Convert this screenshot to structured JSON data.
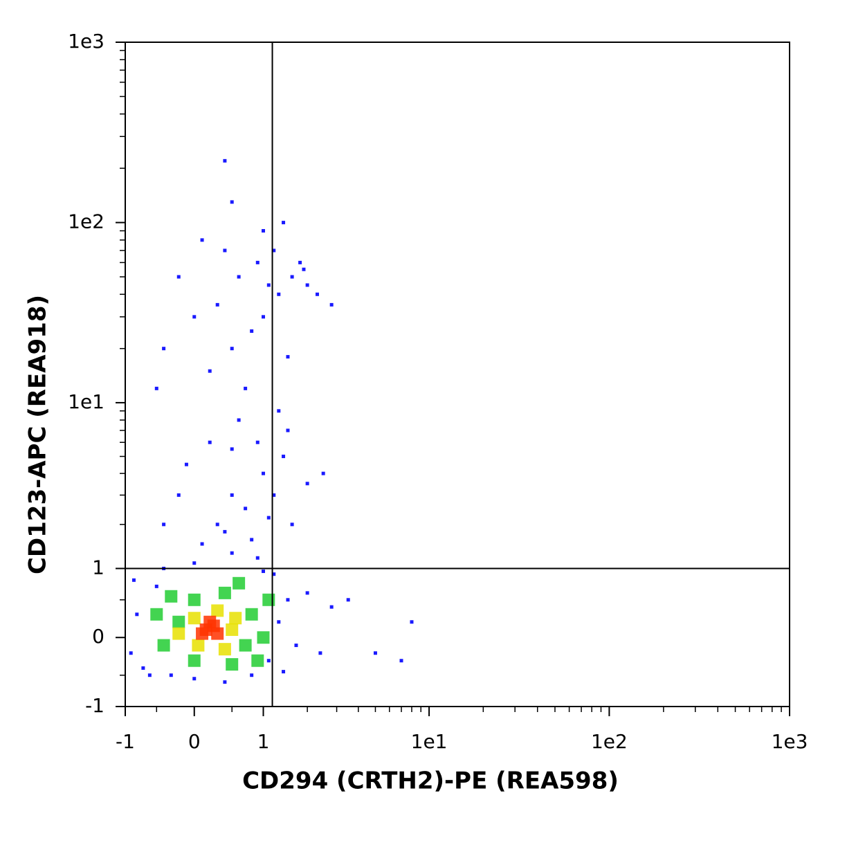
{
  "chart_data": {
    "type": "scatter",
    "xlabel": "CD294 (CRTH2)-PE (REA598)",
    "ylabel": "CD123-APC (REA918)",
    "xscale": "asinh",
    "yscale": "asinh",
    "xlim": [
      -1,
      1000
    ],
    "ylim": [
      -1,
      1000
    ],
    "xticks": [
      -1,
      0,
      1,
      {
        "value": 10,
        "label": "1e1"
      },
      {
        "value": 100,
        "label": "1e2"
      },
      {
        "value": 1000,
        "label": "1e3"
      }
    ],
    "yticks": [
      -1,
      0,
      1,
      {
        "value": 10,
        "label": "1e1"
      },
      {
        "value": 100,
        "label": "1e2"
      },
      {
        "value": 1000,
        "label": "1e3"
      }
    ],
    "xminorticks": [
      -0.5,
      0.5,
      2,
      3,
      4,
      5,
      6,
      7,
      8,
      9,
      20,
      30,
      40,
      50,
      60,
      70,
      80,
      90,
      200,
      300,
      400,
      500,
      600,
      700,
      800,
      900
    ],
    "yminorticks": [
      -0.5,
      0.5,
      2,
      3,
      4,
      5,
      6,
      7,
      8,
      9,
      20,
      30,
      40,
      50,
      60,
      70,
      80,
      90,
      200,
      300,
      400,
      500,
      600,
      700,
      800,
      900
    ],
    "gates": {
      "x": 1.17,
      "y": 1
    },
    "series": [
      {
        "color": "#1a1aff",
        "x": [
          -0.8,
          -0.9,
          -0.7,
          -0.5,
          -0.3,
          0,
          0.4,
          0.8,
          1.1,
          1.3,
          1.5,
          1.2,
          0.9,
          0.5,
          0,
          -0.4,
          1.7,
          2.0,
          2.4,
          2.8,
          3.5,
          5,
          8,
          7,
          -0.85,
          1.0,
          1.4,
          -0.6,
          0.1,
          0.3,
          0.5,
          0.7,
          1.0,
          1.2,
          1.4,
          0.2,
          0.6,
          0.9,
          1.3,
          -0.2,
          -0.4,
          1.6,
          2.0,
          0.4,
          0.8,
          1.1,
          -0.1,
          0.5,
          1.5,
          2.5,
          0.2,
          0.5,
          0.8,
          1.0,
          1.3,
          1.6,
          2.0,
          0.6,
          0.3,
          0.9,
          1.2,
          1.8,
          2.3,
          0.0,
          -0.2,
          -0.4,
          0.4,
          1.0,
          0.7,
          1.5,
          2.8,
          -0.5,
          0.1,
          1.4,
          0.5,
          0.4,
          1.9,
          1.1
        ],
        "y": [
          0.3,
          -0.2,
          -0.4,
          0.7,
          -0.5,
          -0.55,
          -0.6,
          -0.5,
          -0.3,
          0.2,
          0.5,
          0.9,
          1.2,
          1.3,
          1.1,
          1.0,
          -0.1,
          0.6,
          -0.2,
          0.4,
          0.5,
          -0.2,
          0.2,
          -0.3,
          0.8,
          0.95,
          -0.45,
          -0.5,
          1.5,
          2,
          3,
          2.5,
          4,
          3,
          5,
          6,
          8,
          6,
          9,
          3,
          2,
          2,
          3.5,
          1.8,
          1.6,
          2.2,
          4.5,
          5.5,
          7,
          4,
          15,
          20,
          25,
          30,
          40,
          50,
          45,
          50,
          35,
          60,
          70,
          60,
          40,
          30,
          50,
          20,
          70,
          90,
          12,
          18,
          35,
          12,
          80,
          100,
          130,
          220,
          55,
          45
        ]
      },
      {
        "color": "#22cc33",
        "x": [
          0,
          0.4,
          0.8,
          1.0,
          0.9,
          0.5,
          0,
          -0.4,
          -0.5,
          -0.3,
          0.6,
          1.1,
          -0.2,
          0.7
        ],
        "y": [
          0.5,
          0.6,
          0.3,
          0,
          -0.3,
          -0.35,
          -0.3,
          -0.1,
          0.3,
          0.55,
          0.75,
          0.5,
          0.2,
          -0.1
        ]
      },
      {
        "color": "#e8e000",
        "x": [
          0,
          0.3,
          0.5,
          0.4,
          0.05,
          -0.2,
          0.55
        ],
        "y": [
          0.25,
          0.35,
          0.1,
          -0.15,
          -0.1,
          0.05,
          0.25
        ]
      },
      {
        "color": "#ff3300",
        "x": [
          0.15,
          0.25,
          0.3,
          0.2,
          0.1
        ],
        "y": [
          0.1,
          0.15,
          0.05,
          0.2,
          0.05
        ]
      }
    ]
  }
}
